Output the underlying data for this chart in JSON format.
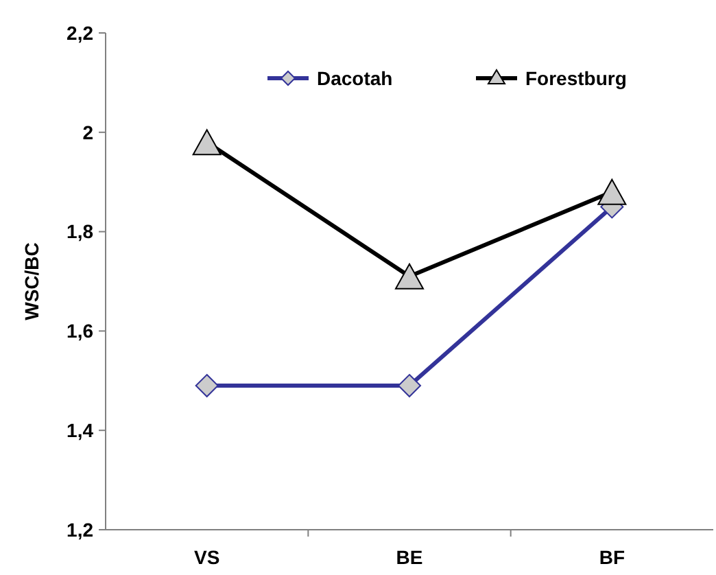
{
  "chart_data": {
    "type": "line",
    "ylabel": "WSC/BC",
    "categories": [
      "VS",
      "BE",
      "BF"
    ],
    "series": [
      {
        "name": "Dacotah",
        "color": "#333399",
        "values": [
          1.49,
          1.49,
          1.85
        ],
        "marker": "diamond"
      },
      {
        "name": "Forestburg",
        "color": "#000000",
        "values": [
          1.98,
          1.71,
          1.88
        ],
        "marker": "triangle"
      }
    ],
    "ylim": [
      1.2,
      2.2
    ],
    "yticks": [
      {
        "value": 1.2,
        "label": "1,2"
      },
      {
        "value": 1.4,
        "label": "1,4"
      },
      {
        "value": 1.6,
        "label": "1,6"
      },
      {
        "value": 1.8,
        "label": "1,8"
      },
      {
        "value": 2,
        "label": "2"
      },
      {
        "value": 2.2,
        "label": "2,2"
      }
    ],
    "grid": false,
    "legend": "top"
  }
}
